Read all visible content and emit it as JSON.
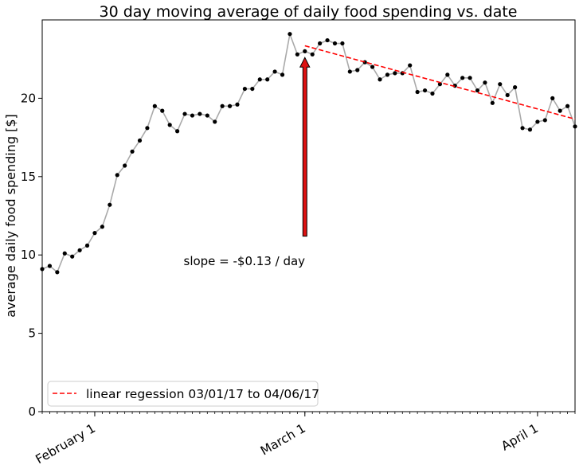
{
  "chart_data": {
    "type": "line",
    "title": "30 day moving average of daily food spending vs. date",
    "xlabel": "",
    "ylabel": "average daily food spending [$]",
    "ylim": [
      0,
      25
    ],
    "yticks": [
      0,
      5,
      10,
      15,
      20
    ],
    "xlim": [
      "2017-01-25",
      "2017-04-06"
    ],
    "xticks": [
      {
        "date": "2017-02-01",
        "label": "February 1"
      },
      {
        "date": "2017-03-01",
        "label": "March 1"
      },
      {
        "date": "2017-04-01",
        "label": "April 1"
      }
    ],
    "series": [
      {
        "x": [
          "2017-01-25",
          "2017-01-26",
          "2017-01-27",
          "2017-01-28",
          "2017-01-29",
          "2017-01-30",
          "2017-01-31",
          "2017-02-01",
          "2017-02-02",
          "2017-02-03",
          "2017-02-04",
          "2017-02-05",
          "2017-02-06",
          "2017-02-07",
          "2017-02-08",
          "2017-02-09",
          "2017-02-10",
          "2017-02-11",
          "2017-02-12",
          "2017-02-13",
          "2017-02-14",
          "2017-02-15",
          "2017-02-16",
          "2017-02-17",
          "2017-02-18",
          "2017-02-19",
          "2017-02-20",
          "2017-02-21",
          "2017-02-22",
          "2017-02-23",
          "2017-02-24",
          "2017-02-25",
          "2017-02-26",
          "2017-02-27",
          "2017-02-28",
          "2017-03-01",
          "2017-03-02",
          "2017-03-03",
          "2017-03-04",
          "2017-03-05",
          "2017-03-06",
          "2017-03-07",
          "2017-03-08",
          "2017-03-09",
          "2017-03-10",
          "2017-03-11",
          "2017-03-12",
          "2017-03-13",
          "2017-03-14",
          "2017-03-15",
          "2017-03-16",
          "2017-03-17",
          "2017-03-18",
          "2017-03-19",
          "2017-03-20",
          "2017-03-21",
          "2017-03-22",
          "2017-03-23",
          "2017-03-24",
          "2017-03-25",
          "2017-03-26",
          "2017-03-27",
          "2017-03-28",
          "2017-03-29",
          "2017-03-30",
          "2017-03-31",
          "2017-04-01",
          "2017-04-02",
          "2017-04-03",
          "2017-04-04",
          "2017-04-05",
          "2017-04-06"
        ],
        "y": [
          9.1,
          9.3,
          8.9,
          10.1,
          9.9,
          10.3,
          10.6,
          11.4,
          11.8,
          13.2,
          15.1,
          15.7,
          16.6,
          17.3,
          18.1,
          19.5,
          19.2,
          18.3,
          17.9,
          19.0,
          18.9,
          19.0,
          18.9,
          18.5,
          19.5,
          19.5,
          19.6,
          20.6,
          20.6,
          21.2,
          21.2,
          21.7,
          21.5,
          24.1,
          22.8,
          23.0,
          22.8,
          23.5,
          23.7,
          23.5,
          23.5,
          21.7,
          21.8,
          22.3,
          22.0,
          21.2,
          21.5,
          21.6,
          21.6,
          22.1,
          20.4,
          20.5,
          20.3,
          20.9,
          21.5,
          20.8,
          21.3,
          21.3,
          20.5,
          21.0,
          19.7,
          20.9,
          20.2,
          20.7,
          18.1,
          18.0,
          18.5,
          18.6,
          20.0,
          19.2,
          19.5,
          18.2
        ]
      }
    ],
    "regression": {
      "name": "linear regession 03/01/17 to 04/06/17",
      "color": "#ff0000",
      "x": [
        "2017-03-01",
        "2017-04-06"
      ],
      "y": [
        23.35,
        18.67
      ]
    },
    "annotation": {
      "text": "slope = -$0.13 / day",
      "arrow_tip": {
        "x": "2017-03-01",
        "y": 22.6
      },
      "arrow_tail": {
        "x": "2017-03-01",
        "y": 11.2
      },
      "text_anchor_point": {
        "x": "2017-03-01",
        "y": 9.6
      },
      "arrow_color": "#dd1111"
    },
    "legend": {
      "position": "lower-left"
    },
    "grid": false,
    "line_color": "#aaaaaa",
    "marker_color": "#000000"
  }
}
